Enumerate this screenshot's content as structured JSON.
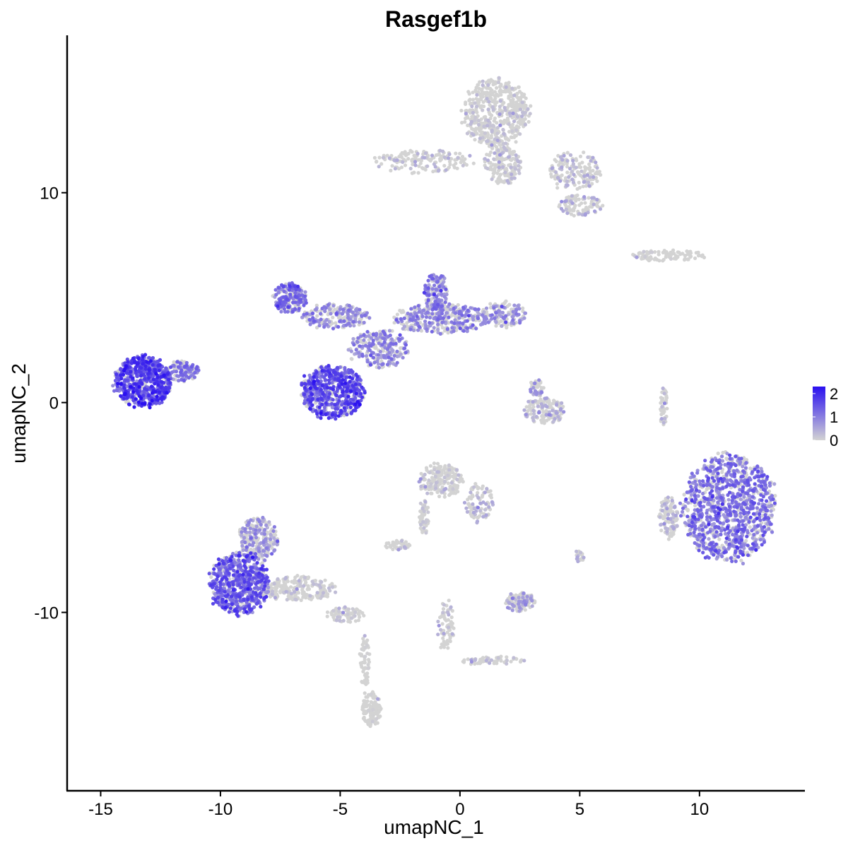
{
  "chart_data": {
    "type": "scatter",
    "title": "Rasgef1b",
    "xlabel": "umapNC_1",
    "ylabel": "umapNC_2",
    "xlim": [
      -16.4,
      14.4
    ],
    "ylim": [
      -18.5,
      17.5
    ],
    "x_ticks": [
      -15,
      -10,
      -5,
      0,
      5,
      10
    ],
    "x_tick_labels": [
      "-15",
      "-10",
      "-5",
      "0",
      "5",
      "10"
    ],
    "y_ticks": [
      -10,
      0,
      10
    ],
    "y_tick_labels": [
      "-10",
      "0",
      "10"
    ],
    "grid": false,
    "legend": {
      "placement": "right",
      "breaks": [
        2,
        1,
        0
      ],
      "labels": [
        "2",
        "1",
        "0"
      ],
      "range": [
        0,
        2.3
      ]
    },
    "color_low": "#d3d3d3",
    "color_high": "#2a10f0",
    "clusters": [
      {
        "label": "left-blob",
        "cx": -13.2,
        "cy": 1.0,
        "rx": 1.2,
        "ry": 1.2,
        "n": 650,
        "expr": 1.5
      },
      {
        "label": "left-blob-tail",
        "cx": -11.6,
        "cy": 1.5,
        "rx": 0.7,
        "ry": 0.5,
        "n": 120,
        "expr": 1.1
      },
      {
        "label": "center-lower-blob",
        "cx": -5.3,
        "cy": 0.5,
        "rx": 1.3,
        "ry": 1.25,
        "n": 600,
        "expr": 1.4
      },
      {
        "label": "center-upper-left-arm",
        "cx": -7.1,
        "cy": 5.0,
        "rx": 0.7,
        "ry": 0.7,
        "n": 200,
        "expr": 1.1
      },
      {
        "label": "center-arm-bridge",
        "cx": -5.2,
        "cy": 4.1,
        "rx": 1.4,
        "ry": 0.6,
        "n": 200,
        "expr": 0.9
      },
      {
        "label": "center-junction",
        "cx": -3.4,
        "cy": 2.6,
        "rx": 1.2,
        "ry": 0.9,
        "n": 240,
        "expr": 0.9
      },
      {
        "label": "center-right-arm",
        "cx": -0.8,
        "cy": 4.0,
        "rx": 1.9,
        "ry": 0.7,
        "n": 350,
        "expr": 0.9
      },
      {
        "label": "center-right-lobe",
        "cx": -1.0,
        "cy": 5.3,
        "rx": 0.5,
        "ry": 0.9,
        "n": 140,
        "expr": 1.0
      },
      {
        "label": "center-right-tip",
        "cx": 1.8,
        "cy": 4.2,
        "rx": 0.9,
        "ry": 0.6,
        "n": 130,
        "expr": 0.8
      },
      {
        "label": "top-cluster-main",
        "cx": 1.5,
        "cy": 13.8,
        "rx": 1.4,
        "ry": 1.6,
        "n": 520,
        "expr": 0.25
      },
      {
        "label": "top-cluster-stem",
        "cx": 1.8,
        "cy": 11.3,
        "rx": 0.8,
        "ry": 0.9,
        "n": 160,
        "expr": 0.3
      },
      {
        "label": "top-cluster-left-arm",
        "cx": -1.5,
        "cy": 11.5,
        "rx": 2.0,
        "ry": 0.55,
        "n": 150,
        "expr": 0.35
      },
      {
        "label": "top-cluster-right",
        "cx": 4.8,
        "cy": 11.0,
        "rx": 1.1,
        "ry": 0.9,
        "n": 160,
        "expr": 0.4
      },
      {
        "label": "top-cluster-right-low",
        "cx": 5.0,
        "cy": 9.4,
        "rx": 0.9,
        "ry": 0.5,
        "n": 100,
        "expr": 0.5
      },
      {
        "label": "right-strip",
        "cx": 8.7,
        "cy": 7.0,
        "rx": 1.5,
        "ry": 0.25,
        "n": 100,
        "expr": 0.1
      },
      {
        "label": "mid-right-small",
        "cx": 3.5,
        "cy": -0.4,
        "rx": 0.9,
        "ry": 0.6,
        "n": 150,
        "expr": 0.45
      },
      {
        "label": "mid-right-small-top",
        "cx": 3.2,
        "cy": 0.7,
        "rx": 0.3,
        "ry": 0.4,
        "n": 50,
        "expr": 0.7
      },
      {
        "label": "right-big-blob",
        "cx": 11.2,
        "cy": -5.0,
        "rx": 1.9,
        "ry": 2.5,
        "n": 1100,
        "expr": 1.1
      },
      {
        "label": "right-big-left-edge",
        "cx": 8.7,
        "cy": -5.5,
        "rx": 0.4,
        "ry": 1.0,
        "n": 120,
        "expr": 0.4
      },
      {
        "label": "right-thin-column",
        "cx": 8.5,
        "cy": -0.1,
        "rx": 0.15,
        "ry": 1.0,
        "n": 50,
        "expr": 0.3
      },
      {
        "label": "mid-lower-small",
        "cx": -0.8,
        "cy": -3.7,
        "rx": 0.9,
        "ry": 0.8,
        "n": 200,
        "expr": 0.25
      },
      {
        "label": "mid-lower-arm",
        "cx": 0.8,
        "cy": -4.8,
        "rx": 0.6,
        "ry": 0.9,
        "n": 90,
        "expr": 0.4
      },
      {
        "label": "mid-lower-stem",
        "cx": -1.5,
        "cy": -5.4,
        "rx": 0.2,
        "ry": 0.8,
        "n": 50,
        "expr": 0.2
      },
      {
        "label": "mid-lower-foot",
        "cx": -2.6,
        "cy": -6.8,
        "rx": 0.5,
        "ry": 0.25,
        "n": 40,
        "expr": 0.3
      },
      {
        "label": "bottom-left-blob",
        "cx": -9.2,
        "cy": -8.6,
        "rx": 1.2,
        "ry": 1.5,
        "n": 650,
        "expr": 1.3
      },
      {
        "label": "bottom-left-upper",
        "cx": -8.4,
        "cy": -6.5,
        "rx": 0.8,
        "ry": 1.0,
        "n": 260,
        "expr": 0.7
      },
      {
        "label": "bottom-left-tail",
        "cx": -6.7,
        "cy": -8.9,
        "rx": 1.6,
        "ry": 0.6,
        "n": 230,
        "expr": 0.25
      },
      {
        "label": "bottom-left-tail-end",
        "cx": -4.8,
        "cy": -10.1,
        "rx": 0.8,
        "ry": 0.35,
        "n": 70,
        "expr": 0.2
      },
      {
        "label": "bottom-lower-stem",
        "cx": -4.0,
        "cy": -12.4,
        "rx": 0.2,
        "ry": 1.4,
        "n": 60,
        "expr": 0.05
      },
      {
        "label": "bottom-lower-cluster",
        "cx": -3.7,
        "cy": -14.6,
        "rx": 0.4,
        "ry": 0.8,
        "n": 120,
        "expr": 0.05
      },
      {
        "label": "lower-mid-small",
        "cx": 2.5,
        "cy": -9.5,
        "rx": 0.6,
        "ry": 0.45,
        "n": 120,
        "expr": 0.55
      },
      {
        "label": "lower-mid-strand",
        "cx": -0.6,
        "cy": -10.6,
        "rx": 0.35,
        "ry": 1.3,
        "n": 70,
        "expr": 0.3
      },
      {
        "label": "lower-mid-branch",
        "cx": 1.3,
        "cy": -12.3,
        "rx": 1.3,
        "ry": 0.2,
        "n": 60,
        "expr": 0.3
      },
      {
        "label": "mid-right-tiny",
        "cx": 5.0,
        "cy": -7.3,
        "rx": 0.2,
        "ry": 0.3,
        "n": 20,
        "expr": 0.4
      }
    ]
  }
}
